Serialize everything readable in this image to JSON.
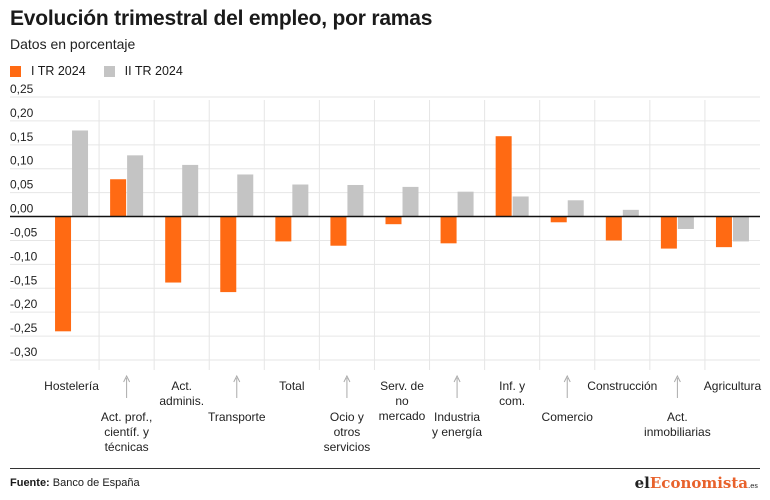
{
  "chart_data": {
    "type": "bar",
    "title": "Evolución trimestral del empleo, por ramas",
    "subtitle": "Datos en porcentaje",
    "categories": [
      {
        "lines": [
          "Hostelería"
        ],
        "arrow": false
      },
      {
        "lines": [
          "Act. prof.,",
          "científ. y",
          "técnicas"
        ],
        "arrow": true
      },
      {
        "lines": [
          "Act.",
          "adminis."
        ],
        "arrow": false
      },
      {
        "lines": [
          "Transporte"
        ],
        "arrow": true
      },
      {
        "lines": [
          "Total"
        ],
        "arrow": false
      },
      {
        "lines": [
          "Ocio y",
          "otros",
          "servicios"
        ],
        "arrow": true
      },
      {
        "lines": [
          "Serv. de",
          "no",
          "mercado"
        ],
        "arrow": false
      },
      {
        "lines": [
          "Industria",
          "y energía"
        ],
        "arrow": true
      },
      {
        "lines": [
          "Inf. y",
          "com."
        ],
        "arrow": false
      },
      {
        "lines": [
          "Comercio"
        ],
        "arrow": true
      },
      {
        "lines": [
          "Construcción"
        ],
        "arrow": false
      },
      {
        "lines": [
          "Act.",
          "inmobiliarias"
        ],
        "arrow": true
      },
      {
        "lines": [
          "Agricultura"
        ],
        "arrow": false
      }
    ],
    "series": [
      {
        "name": "I TR 2024",
        "color": "#ff6a13",
        "values": [
          -0.24,
          0.078,
          -0.138,
          -0.158,
          -0.052,
          -0.061,
          -0.016,
          -0.056,
          0.168,
          -0.012,
          -0.05,
          -0.067,
          -0.064
        ]
      },
      {
        "name": "II TR 2024",
        "color": "#c4c4c4",
        "values": [
          0.18,
          0.128,
          0.108,
          0.088,
          0.067,
          0.066,
          0.062,
          0.052,
          0.042,
          0.034,
          0.014,
          -0.026,
          -0.052
        ]
      }
    ],
    "ylim": [
      -0.3,
      0.25
    ],
    "yticks": [
      "0,25",
      "0,20",
      "0,15",
      "0,10",
      "0,05",
      "0,00",
      "-0,05",
      "-0,10",
      "-0,15",
      "-0,20",
      "-0,25",
      "-0,30"
    ],
    "ytick_values": [
      0.25,
      0.2,
      0.15,
      0.1,
      0.05,
      0.0,
      -0.05,
      -0.1,
      -0.15,
      -0.2,
      -0.25,
      -0.3
    ],
    "grid": true,
    "legend": "top-left"
  },
  "footer": {
    "source_label": "Fuente:",
    "source_text": "Banco de España",
    "logo_pre": "el",
    "logo_mid": "Economista",
    "logo_suffix": ".es"
  }
}
